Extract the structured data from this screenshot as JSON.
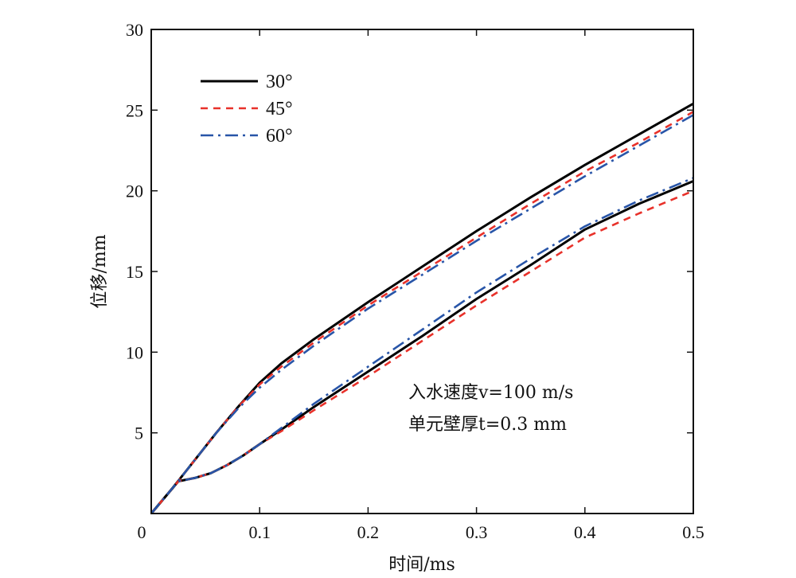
{
  "chart_data": {
    "type": "line",
    "xlabel": "时间/ms",
    "ylabel": "位移/mm",
    "xlim": [
      0,
      0.5
    ],
    "ylim": [
      0,
      30
    ],
    "xticks": [
      0,
      0.1,
      0.2,
      0.3,
      0.4,
      0.5
    ],
    "xtick_labels": [
      "0",
      "0.1",
      "0.2",
      "0.3",
      "0.4",
      "0.5"
    ],
    "yticks": [
      5,
      10,
      15,
      20,
      25,
      30
    ],
    "ytick_labels": [
      "5",
      "10",
      "15",
      "20",
      "25",
      "30"
    ],
    "grid": false,
    "legend_position": "top-left",
    "annotations": [
      "入水速度v=100 m/s",
      "单元壁厚t=0.3 mm"
    ],
    "series": [
      {
        "name": "30°",
        "branch": "upper",
        "color": "#000000",
        "dash": "solid",
        "x": [
          0,
          0.02,
          0.04,
          0.06,
          0.08,
          0.1,
          0.12,
          0.15,
          0.2,
          0.25,
          0.3,
          0.35,
          0.4,
          0.45,
          0.5
        ],
        "y": [
          0,
          1.6,
          3.3,
          5.0,
          6.6,
          8.1,
          9.3,
          10.8,
          13.1,
          15.3,
          17.5,
          19.6,
          21.6,
          23.5,
          25.4
        ]
      },
      {
        "name": "45°",
        "branch": "upper",
        "color": "#e8312a",
        "dash": "dashed",
        "x": [
          0,
          0.02,
          0.04,
          0.06,
          0.08,
          0.1,
          0.12,
          0.15,
          0.2,
          0.25,
          0.3,
          0.35,
          0.4,
          0.45,
          0.5
        ],
        "y": [
          0,
          1.6,
          3.3,
          5.0,
          6.6,
          8.0,
          9.1,
          10.6,
          12.9,
          15.0,
          17.1,
          19.2,
          21.2,
          23.0,
          24.9
        ]
      },
      {
        "name": "60°",
        "branch": "upper",
        "color": "#2855a8",
        "dash": "dashdot",
        "x": [
          0,
          0.02,
          0.04,
          0.06,
          0.08,
          0.1,
          0.12,
          0.15,
          0.2,
          0.25,
          0.3,
          0.35,
          0.4,
          0.45,
          0.5
        ],
        "y": [
          0,
          1.6,
          3.3,
          5.0,
          6.5,
          7.8,
          8.9,
          10.4,
          12.7,
          14.8,
          16.9,
          18.9,
          20.9,
          22.8,
          24.7
        ]
      },
      {
        "name": "30°",
        "branch": "lower",
        "color": "#000000",
        "dash": "solid",
        "x": [
          0,
          0.02,
          0.025,
          0.04,
          0.055,
          0.07,
          0.085,
          0.1,
          0.12,
          0.15,
          0.2,
          0.25,
          0.3,
          0.35,
          0.4,
          0.45,
          0.5
        ],
        "y": [
          0,
          1.6,
          2.0,
          2.2,
          2.5,
          3.0,
          3.6,
          4.3,
          5.2,
          6.6,
          8.8,
          11.0,
          13.3,
          15.4,
          17.6,
          19.2,
          20.6
        ]
      },
      {
        "name": "45°",
        "branch": "lower",
        "color": "#e8312a",
        "dash": "dashed",
        "x": [
          0,
          0.02,
          0.025,
          0.04,
          0.055,
          0.07,
          0.085,
          0.1,
          0.12,
          0.15,
          0.2,
          0.25,
          0.3,
          0.35,
          0.4,
          0.45,
          0.5
        ],
        "y": [
          0,
          1.6,
          2.0,
          2.2,
          2.5,
          3.0,
          3.6,
          4.3,
          5.1,
          6.4,
          8.5,
          10.7,
          12.9,
          15.0,
          17.1,
          18.6,
          20.0
        ]
      },
      {
        "name": "60°",
        "branch": "lower",
        "color": "#2855a8",
        "dash": "dashdot",
        "x": [
          0,
          0.02,
          0.025,
          0.04,
          0.055,
          0.07,
          0.085,
          0.1,
          0.12,
          0.15,
          0.2,
          0.25,
          0.3,
          0.35,
          0.4,
          0.45,
          0.5
        ],
        "y": [
          0,
          1.6,
          2.0,
          2.2,
          2.5,
          3.0,
          3.6,
          4.3,
          5.3,
          6.8,
          9.1,
          11.4,
          13.7,
          15.8,
          17.8,
          19.4,
          20.8
        ]
      }
    ],
    "legend": [
      {
        "name": "30°",
        "color": "#000000",
        "dash": "solid"
      },
      {
        "name": "45°",
        "color": "#e8312a",
        "dash": "dashed"
      },
      {
        "name": "60°",
        "color": "#2855a8",
        "dash": "dashdot"
      }
    ]
  }
}
